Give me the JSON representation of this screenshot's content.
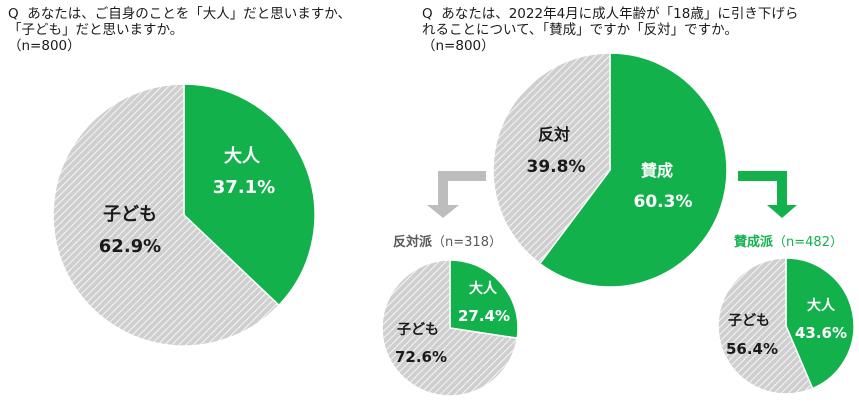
{
  "questions": {
    "q1": "Q  あなたは、ご自身のことを「大人」だと思いますか、\n「子ども」だと思いますか。\n（n=800）",
    "q2": "Q  あなたは、2022年4月に成人年齢が「18歳」に引き下げら\nれることについて、「賛成」ですか「反対」ですか。\n（n=800）"
  },
  "colors": {
    "green": "#12b14b",
    "hatch_bg": "#cfcfcf",
    "hatch_line": "#ffffff",
    "arrow_gray": "#bdbdbd",
    "label_gray": "#595959"
  },
  "chart_data": [
    {
      "type": "pie",
      "id": "adult-or-child",
      "slices": [
        {
          "label": "大人",
          "value": 37.1,
          "display": "37.1%"
        },
        {
          "label": "子ども",
          "value": 62.9,
          "display": "62.9%"
        }
      ]
    },
    {
      "type": "pie",
      "id": "approve-or-oppose",
      "slices": [
        {
          "label": "賛成",
          "value": 60.3,
          "display": "60.3%"
        },
        {
          "label": "反対",
          "value": 39.8,
          "display": "39.8%"
        }
      ]
    },
    {
      "type": "pie",
      "id": "oppose-group",
      "group_label": "反対派",
      "n_label": "（n=318）",
      "slices": [
        {
          "label": "大人",
          "value": 27.4,
          "display": "27.4%"
        },
        {
          "label": "子ども",
          "value": 72.6,
          "display": "72.6%"
        }
      ]
    },
    {
      "type": "pie",
      "id": "approve-group",
      "group_label": "賛成派",
      "n_label": "（n=482）",
      "slices": [
        {
          "label": "大人",
          "value": 43.6,
          "display": "43.6%"
        },
        {
          "label": "子ども",
          "value": 56.4,
          "display": "56.4%"
        }
      ]
    }
  ]
}
